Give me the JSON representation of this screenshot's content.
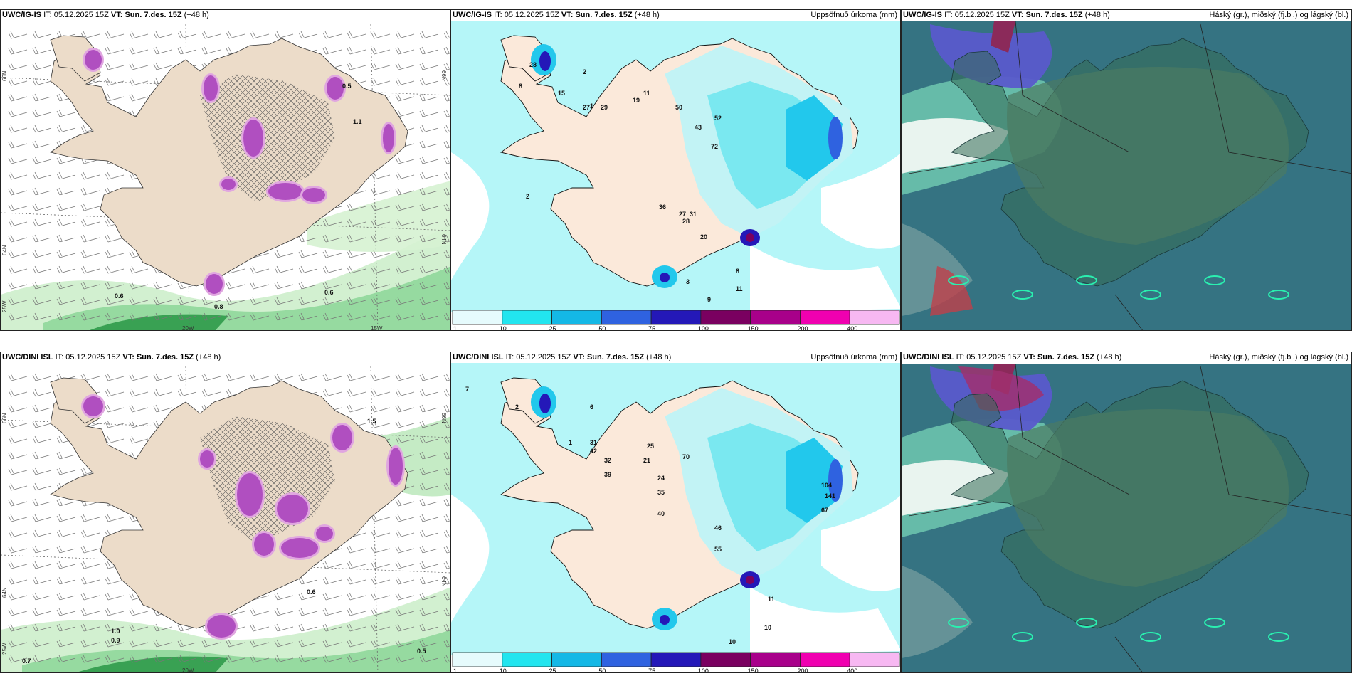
{
  "rows": [
    {
      "model": "UWC/IG-IS",
      "it_label": "IT:",
      "it_value": "05.12.2025 15Z",
      "vt_label": "VT:",
      "vt_value": "Sun. 7.des. 15Z",
      "lead": "(+48 h)"
    },
    {
      "model": "UWC/DINI ISL",
      "it_label": "IT:",
      "it_value": "05.12.2025 15Z",
      "vt_label": "VT:",
      "vt_value": "Sun. 7.des. 15Z",
      "lead": "(+48 h)"
    }
  ],
  "precip_title": "Uppsöfnuð úrkoma (mm)",
  "cloud_title": "Háský (gr.), miðský (fj.bl.) og lágský (bl.)",
  "colorbar": {
    "ticks": [
      "1",
      "10",
      "25",
      "50",
      "75",
      "100",
      "150",
      "200",
      "400"
    ],
    "colors": [
      "#e6fbfd",
      "#22e5ef",
      "#14b8e6",
      "#2f62e0",
      "#2418b8",
      "#7a0060",
      "#a8008a",
      "#f000b0",
      "#f7b8f2"
    ]
  },
  "axis_labels": {
    "lat_66": "66N",
    "lat_64": "64N",
    "lon_25": "25W",
    "lon_20": "20W",
    "lon_15": "15W"
  },
  "precip_labels_top": [
    "28",
    "2",
    "1",
    "8",
    "2",
    "15",
    "27",
    "29",
    "11",
    "19",
    "50",
    "43",
    "52",
    "72",
    "36",
    "27",
    "31",
    "28",
    "20",
    "3",
    "9",
    "11",
    "8"
  ],
  "precip_labels_bottom": [
    "7",
    "2",
    "6",
    "1",
    "31",
    "42",
    "32",
    "39",
    "21",
    "25",
    "70",
    "24",
    "35",
    "40",
    "46",
    "55",
    "104",
    "141",
    "67",
    "10",
    "11",
    "10"
  ],
  "precip_values_top": [
    "0.6",
    "0.8",
    "0.6",
    "1.1",
    "0.5"
  ],
  "precip_values_bottom": [
    "0.7",
    "1.0",
    "0.9",
    "0.6",
    "0.5",
    "1.5"
  ]
}
